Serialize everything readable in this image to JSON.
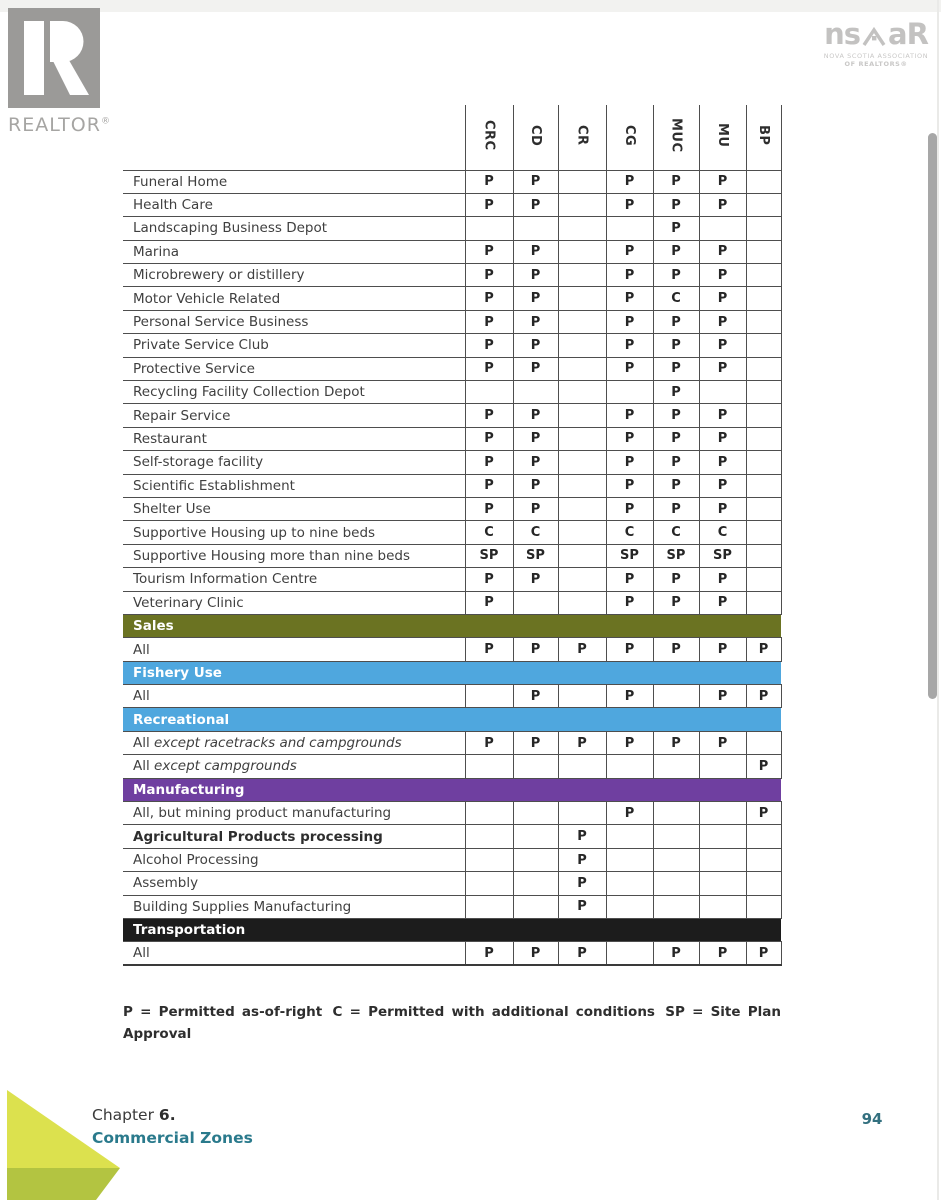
{
  "logos": {
    "realtor_word": "REALTOR",
    "realtor_reg": "®",
    "nsar_left": "ns",
    "nsar_right": "aR",
    "nsar_caption1": "NOVA SCOTIA ASSOCIATION",
    "nsar_caption2": "OF REALTORS®"
  },
  "table": {
    "columns": [
      "CRC",
      "CD",
      "CR",
      "CG",
      "MUC",
      "MU",
      "BP"
    ],
    "rows": [
      {
        "t": "u",
        "label": "Funeral Home",
        "v": [
          "P",
          "P",
          "",
          "P",
          "P",
          "P",
          ""
        ]
      },
      {
        "t": "u",
        "label": "Health Care",
        "v": [
          "P",
          "P",
          "",
          "P",
          "P",
          "P",
          ""
        ]
      },
      {
        "t": "u",
        "label": "Landscaping Business Depot",
        "v": [
          "",
          "",
          "",
          "",
          "P",
          "",
          ""
        ]
      },
      {
        "t": "u",
        "label": "Marina",
        "v": [
          "P",
          "P",
          "",
          "P",
          "P",
          "P",
          ""
        ]
      },
      {
        "t": "u",
        "label": "Microbrewery or distillery",
        "v": [
          "P",
          "P",
          "",
          "P",
          "P",
          "P",
          ""
        ]
      },
      {
        "t": "u",
        "label": "Motor Vehicle Related",
        "v": [
          "P",
          "P",
          "",
          "P",
          "C",
          "P",
          ""
        ]
      },
      {
        "t": "u",
        "label": "Personal Service Business",
        "v": [
          "P",
          "P",
          "",
          "P",
          "P",
          "P",
          ""
        ]
      },
      {
        "t": "u",
        "label": "Private Service Club",
        "v": [
          "P",
          "P",
          "",
          "P",
          "P",
          "P",
          ""
        ]
      },
      {
        "t": "u",
        "label": "Protective Service",
        "v": [
          "P",
          "P",
          "",
          "P",
          "P",
          "P",
          ""
        ]
      },
      {
        "t": "u",
        "label": "Recycling Facility Collection Depot",
        "v": [
          "",
          "",
          "",
          "",
          "P",
          "",
          ""
        ]
      },
      {
        "t": "u",
        "label": "Repair Service",
        "v": [
          "P",
          "P",
          "",
          "P",
          "P",
          "P",
          ""
        ]
      },
      {
        "t": "u",
        "label": "Restaurant",
        "v": [
          "P",
          "P",
          "",
          "P",
          "P",
          "P",
          ""
        ]
      },
      {
        "t": "u",
        "label": "Self-storage facility",
        "v": [
          "P",
          "P",
          "",
          "P",
          "P",
          "P",
          ""
        ]
      },
      {
        "t": "u",
        "label": "Scientific Establishment",
        "v": [
          "P",
          "P",
          "",
          "P",
          "P",
          "P",
          ""
        ]
      },
      {
        "t": "u",
        "label": "Shelter Use",
        "v": [
          "P",
          "P",
          "",
          "P",
          "P",
          "P",
          ""
        ]
      },
      {
        "t": "u",
        "label": "Supportive Housing up to nine beds",
        "v": [
          "C",
          "C",
          "",
          "C",
          "C",
          "C",
          ""
        ]
      },
      {
        "t": "u",
        "label": "Supportive Housing more than nine beds",
        "v": [
          "SP",
          "SP",
          "",
          "SP",
          "SP",
          "SP",
          ""
        ]
      },
      {
        "t": "u",
        "label": "Tourism Information Centre",
        "v": [
          "P",
          "P",
          "",
          "P",
          "P",
          "P",
          ""
        ]
      },
      {
        "t": "u",
        "label": "Veterinary Clinic",
        "v": [
          "P",
          "",
          "",
          "P",
          "P",
          "P",
          ""
        ]
      },
      {
        "t": "s",
        "label": "Sales",
        "color": "#6b7322"
      },
      {
        "t": "u",
        "label": "All",
        "v": [
          "P",
          "P",
          "P",
          "P",
          "P",
          "P",
          "P"
        ]
      },
      {
        "t": "s",
        "label": "Fishery Use",
        "color": "#4fa7de"
      },
      {
        "t": "u",
        "label": "All",
        "v": [
          "",
          "P",
          "",
          "P",
          "",
          "P",
          "P"
        ]
      },
      {
        "t": "s",
        "label": "Recreational",
        "color": "#4fa7de"
      },
      {
        "t": "u",
        "label": "All",
        "italic": "except racetracks and campgrounds",
        "v": [
          "P",
          "P",
          "P",
          "P",
          "P",
          "P",
          ""
        ]
      },
      {
        "t": "u",
        "label": "All",
        "italic": "except campgrounds",
        "v": [
          "",
          "",
          "",
          "",
          "",
          "",
          "P"
        ]
      },
      {
        "t": "s",
        "label": "Manufacturing",
        "color": "#6f3fa0"
      },
      {
        "t": "u",
        "label": "All, but mining product manufacturing",
        "v": [
          "",
          "",
          "",
          "P",
          "",
          "",
          "P"
        ]
      },
      {
        "t": "u",
        "label": "Agricultural Products processing",
        "bold": true,
        "v": [
          "",
          "",
          "P",
          "",
          "",
          "",
          ""
        ]
      },
      {
        "t": "u",
        "label": "Alcohol Processing",
        "v": [
          "",
          "",
          "P",
          "",
          "",
          "",
          ""
        ]
      },
      {
        "t": "u",
        "label": "Assembly",
        "v": [
          "",
          "",
          "P",
          "",
          "",
          "",
          ""
        ]
      },
      {
        "t": "u",
        "label": "Building Supplies Manufacturing",
        "v": [
          "",
          "",
          "P",
          "",
          "",
          "",
          ""
        ]
      },
      {
        "t": "s",
        "label": "Transportation",
        "color": "#1c1c1c"
      },
      {
        "t": "u",
        "label": "All",
        "v": [
          "P",
          "P",
          "P",
          "",
          "P",
          "P",
          "P"
        ]
      }
    ],
    "legend": {
      "p": "P = Permitted as-of-right",
      "c": "C = Permitted with additional conditions",
      "sp_line1": "SP = Site Plan",
      "sp_line2": "Approval"
    }
  },
  "footer": {
    "chapter_prefix": "Chapter",
    "chapter_num": "6.",
    "chapter_title": "Commercial Zones",
    "page_number": "94"
  },
  "colors": {
    "sales_bar": "#6b7322",
    "blue_bar": "#4fa7de",
    "purple_bar": "#6f3fa0",
    "black_bar": "#1c1c1c",
    "footer_teal": "#2a7a8c"
  }
}
